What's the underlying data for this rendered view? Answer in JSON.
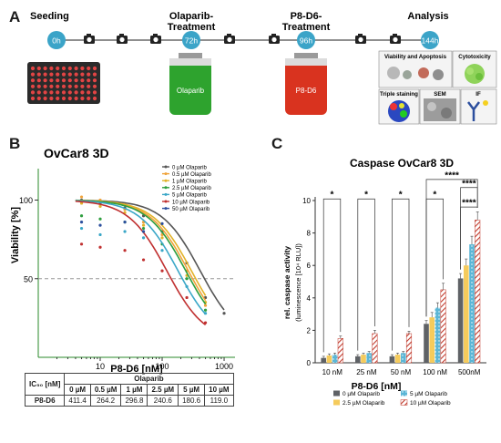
{
  "panels": {
    "a": "A",
    "b": "B",
    "c": "C"
  },
  "timeline": {
    "stages": [
      "Seeding",
      "Olaparib-\nTreatment",
      "P8-D6-\nTreatment",
      "Analysis"
    ],
    "time_points": [
      "0h",
      "72h",
      "96h",
      "144h"
    ],
    "bottle_labels": [
      "Olaparib",
      "P8-D6"
    ],
    "analysis_tiles": [
      "Viability and Apoptosis",
      "Cytotoxicity",
      "Triple staining",
      "SEM",
      "IF"
    ],
    "colors": {
      "olaparib_bottle": "#2ea32e",
      "p8d6_bottle": "#d9331f",
      "time_circle": "#3ba4c8",
      "plate": "#2b2b2b",
      "wells": "#e24444"
    }
  },
  "chart_data": [
    {
      "type": "line",
      "title": "OvCar8 3D",
      "xlabel": "P8-D6 [nM]",
      "ylabel": "Viability [%]",
      "x_scale": "log",
      "xlim": [
        1,
        1500
      ],
      "ylim": [
        0,
        120
      ],
      "x_ticks": [
        "10",
        "100",
        "1000"
      ],
      "y_ticks": [
        "50",
        "100"
      ],
      "reference_line": 50,
      "legend_position": "top-right",
      "series": [
        {
          "name": "0 µM Olaparib",
          "color": "#555555",
          "ic50": 411.4,
          "points": [
            [
              5,
              100
            ],
            [
              10,
              98
            ],
            [
              25,
              95
            ],
            [
              50,
              90
            ],
            [
              100,
              80
            ],
            [
              250,
              60
            ],
            [
              500,
              38
            ],
            [
              1000,
              28
            ]
          ]
        },
        {
          "name": "0.5 µM Olaparib",
          "color": "#f0a33a",
          "ic50": 264.2,
          "points": [
            [
              5,
              102
            ],
            [
              10,
              100
            ],
            [
              25,
              94
            ],
            [
              50,
              86
            ],
            [
              100,
              78
            ],
            [
              250,
              55
            ],
            [
              500,
              33
            ]
          ]
        },
        {
          "name": "1 µM Olaparib",
          "color": "#e2b32a",
          "ic50": 296.8,
          "points": [
            [
              5,
              98
            ],
            [
              10,
              96
            ],
            [
              25,
              92
            ],
            [
              50,
              84
            ],
            [
              100,
              76
            ],
            [
              250,
              52
            ],
            [
              500,
              35
            ]
          ]
        },
        {
          "name": "2.5 µM Olaparib",
          "color": "#2e9e3e",
          "ic50": 240.6,
          "points": [
            [
              5,
              90
            ],
            [
              10,
              88
            ],
            [
              25,
              86
            ],
            [
              50,
              82
            ],
            [
              100,
              72
            ],
            [
              250,
              50
            ],
            [
              500,
              30
            ]
          ]
        },
        {
          "name": "5 µM Olaparib",
          "color": "#3aa7c7",
          "ic50": 180.6,
          "points": [
            [
              5,
              82
            ],
            [
              10,
              78
            ],
            [
              25,
              80
            ],
            [
              50,
              76
            ],
            [
              100,
              68
            ],
            [
              250,
              45
            ],
            [
              500,
              28
            ]
          ]
        },
        {
          "name": "10 µM Olaparib",
          "color": "#c03030",
          "ic50": 119.0,
          "points": [
            [
              5,
              72
            ],
            [
              10,
              70
            ],
            [
              25,
              68
            ],
            [
              50,
              62
            ],
            [
              100,
              55
            ],
            [
              250,
              38
            ],
            [
              500,
              22
            ]
          ]
        },
        {
          "name": "50 µM Olaparib",
          "color": "#2c4f9e",
          "points": [
            [
              5,
              86
            ],
            [
              10,
              84
            ],
            [
              25,
              86
            ],
            [
              50,
              80
            ],
            [
              100,
              85
            ]
          ]
        }
      ]
    },
    {
      "type": "bar",
      "title": "Caspase OvCar8 3D",
      "xlabel": "P8-D6 [nM]",
      "ylabel": "rel. caspase activity",
      "ylabel2": "(luminescence [10⁴ RLU])",
      "ylim": [
        0,
        10
      ],
      "y_ticks": [
        "0",
        "2",
        "4",
        "6",
        "8",
        "10"
      ],
      "categories": [
        "10 nM",
        "25 nM",
        "50 nM",
        "100 nM",
        "500nM"
      ],
      "series": [
        {
          "name": "0 µM Olaparib",
          "color": "#5f6266",
          "values": [
            0.3,
            0.4,
            0.4,
            2.4,
            5.2
          ],
          "errors": [
            0.1,
            0.1,
            0.1,
            0.2,
            0.3
          ]
        },
        {
          "name": "2.5 µM Olaparib",
          "color": "#f5cb5c",
          "values": [
            0.45,
            0.5,
            0.5,
            2.8,
            6.0
          ],
          "errors": [
            0.1,
            0.1,
            0.1,
            0.3,
            0.4
          ]
        },
        {
          "name": "5 µM Olaparib",
          "color": "#5bb6d6",
          "values": [
            0.5,
            0.6,
            0.6,
            3.4,
            7.3
          ],
          "errors": [
            0.1,
            0.1,
            0.1,
            0.3,
            0.5
          ]
        },
        {
          "name": "10 µM Olaparib",
          "color": "#c0392b",
          "values": [
            1.5,
            1.8,
            1.8,
            4.5,
            8.8
          ],
          "errors": [
            0.15,
            0.2,
            0.15,
            0.4,
            0.5
          ],
          "hatched": true
        }
      ],
      "significance": [
        {
          "from": 0,
          "to": 3,
          "category": 0,
          "label": "*",
          "level": 10.1
        },
        {
          "from": 0,
          "to": 3,
          "category": 1,
          "label": "*",
          "level": 10.1
        },
        {
          "from": 0,
          "to": 3,
          "category": 2,
          "label": "*",
          "level": 10.1
        },
        {
          "from": 0,
          "to": 3,
          "category": 3,
          "label": "*",
          "level": 10.1
        },
        {
          "from": 0,
          "to": 3,
          "category": 3,
          "label": "****",
          "level": 11.3,
          "to_category": 4
        },
        {
          "from": 0,
          "to": 3,
          "category": 4,
          "label": "****",
          "level": 9.6
        },
        {
          "from": 0,
          "to": 3,
          "category": 4,
          "label": "****",
          "level": 10.8
        }
      ]
    }
  ],
  "ic50_table": {
    "row_header": "IC₅₀ [nM]",
    "group_header": "Olaparib",
    "columns": [
      "0 µM",
      "0.5 µM",
      "1 µM",
      "2.5 µM",
      "5 µM",
      "10 µM"
    ],
    "row_label": "P8-D6",
    "values": [
      "411.4",
      "264.2",
      "296.8",
      "240.6",
      "180.6",
      "119.0"
    ]
  }
}
